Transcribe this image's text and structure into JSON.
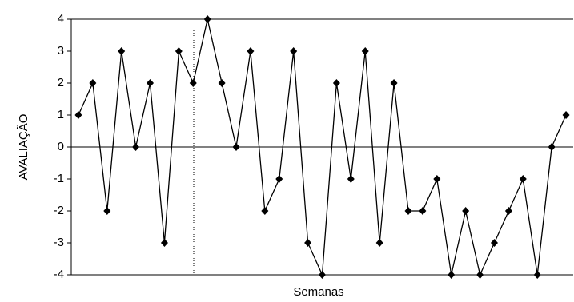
{
  "chart_data": {
    "type": "line",
    "y_label": "AVALIAÇÃO",
    "x_label": "Semanas",
    "categories": [
      null,
      null,
      null,
      null,
      null,
      null,
      null,
      null,
      null,
      null,
      null,
      null,
      null,
      null,
      null,
      null,
      null,
      null,
      null,
      null,
      null,
      null,
      null,
      null,
      null,
      null,
      null,
      null,
      null,
      null,
      null,
      null,
      null,
      null,
      null
    ],
    "series": [
      {
        "name": null,
        "color": "#000000",
        "values": [
          1,
          2,
          -2,
          3,
          0,
          2,
          -3,
          3,
          2,
          4,
          2,
          0,
          3,
          -2,
          -1,
          3,
          -3,
          -4,
          2,
          -1,
          3,
          -3,
          2,
          -2,
          -2,
          -1,
          -4,
          -2,
          -4,
          -3,
          -2,
          -1,
          -4,
          0,
          1
        ]
      }
    ],
    "ylim": [
      -4,
      4
    ],
    "yticks": [
      -4,
      -3,
      -2,
      -1,
      0,
      1,
      2,
      3,
      4
    ]
  }
}
